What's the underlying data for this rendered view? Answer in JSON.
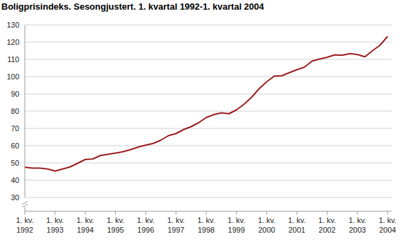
{
  "chart_data": {
    "type": "line",
    "title": "Boligprisindeks. Sesongjustert. 1. kvartal 1992-1. kvartal 2004",
    "categories": [
      "1. kv. 1992",
      null,
      null,
      null,
      "1. kv. 1993",
      null,
      null,
      null,
      "1. kv. 1994",
      null,
      null,
      null,
      "1. kv. 1995",
      null,
      null,
      null,
      "1. kv. 1996",
      null,
      null,
      null,
      "1. kv. 1997",
      null,
      null,
      null,
      "1. kv. 1998",
      null,
      null,
      null,
      "1. kv. 1999",
      null,
      null,
      null,
      "1. kv. 2000",
      null,
      null,
      null,
      "1. kv. 2001",
      null,
      null,
      null,
      "1. kv. 2002",
      null,
      null,
      null,
      "1. kv. 2003",
      null,
      null,
      null,
      "1. kv. 2004"
    ],
    "values": [
      47.5,
      47,
      47,
      46.5,
      45.3,
      46.5,
      47.7,
      49.8,
      52,
      52.3,
      54.3,
      55,
      55.7,
      56.5,
      57.7,
      59.2,
      60.3,
      61.3,
      63.2,
      65.8,
      67,
      69.3,
      71,
      73.3,
      76.3,
      78,
      79,
      78.5,
      80.7,
      84,
      88,
      93,
      97,
      100.3,
      100.5,
      102.3,
      104,
      105.5,
      109,
      110.2,
      111.2,
      112.6,
      112.4,
      113.3,
      112.8,
      111.5,
      115,
      118.2,
      123.3
    ],
    "color": "#9b1b1f",
    "ylim": [
      30,
      130
    ],
    "yticks": [
      30,
      40,
      50,
      60,
      70,
      80,
      90,
      100,
      110,
      120,
      130
    ],
    "grid": true
  }
}
